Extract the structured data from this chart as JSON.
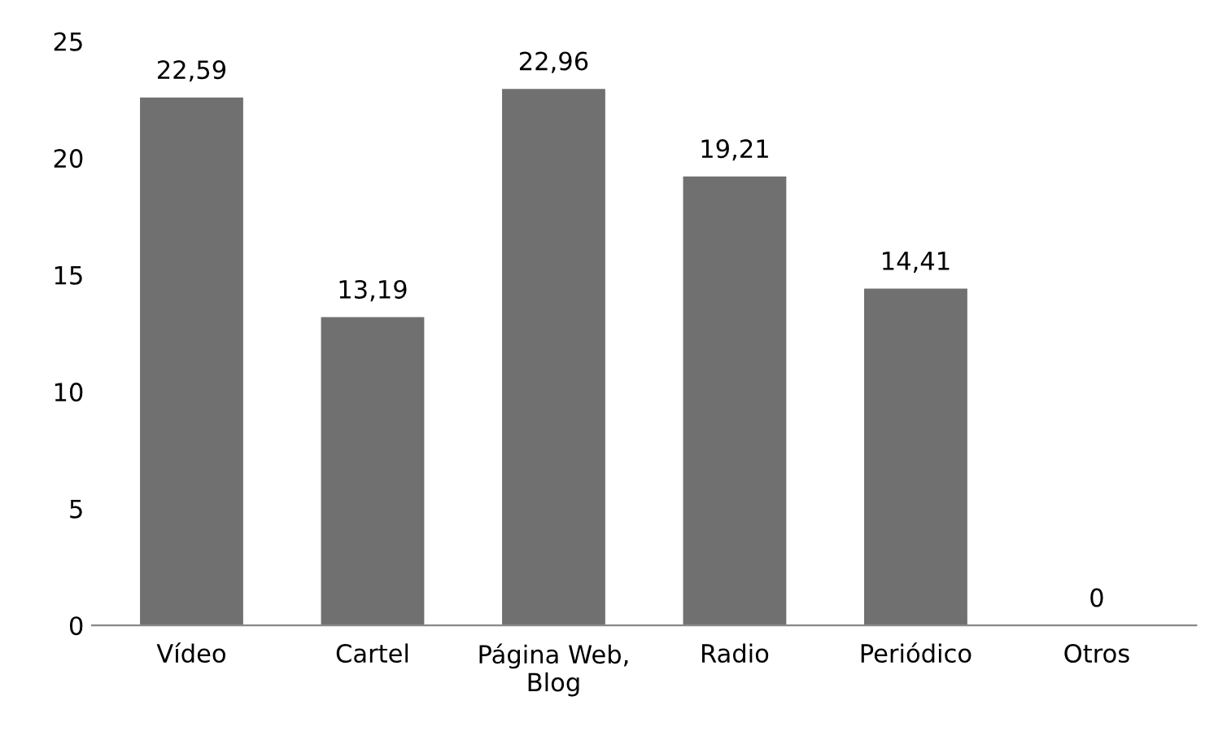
{
  "chart_data": {
    "type": "bar",
    "categories": [
      "Vídeo",
      "Cartel",
      "Página Web,\nBlog",
      "Radio",
      "Periódico",
      "Otros"
    ],
    "values": [
      22.59,
      13.19,
      22.96,
      19.21,
      14.41,
      0
    ],
    "value_labels": [
      "22,59",
      "13,19",
      "22,96",
      "19,21",
      "14,41",
      "0"
    ],
    "color": "#707070",
    "ylim": [
      0,
      25
    ],
    "yticks": [
      0,
      5,
      10,
      15,
      20,
      25
    ],
    "grid": false,
    "legend": false
  }
}
